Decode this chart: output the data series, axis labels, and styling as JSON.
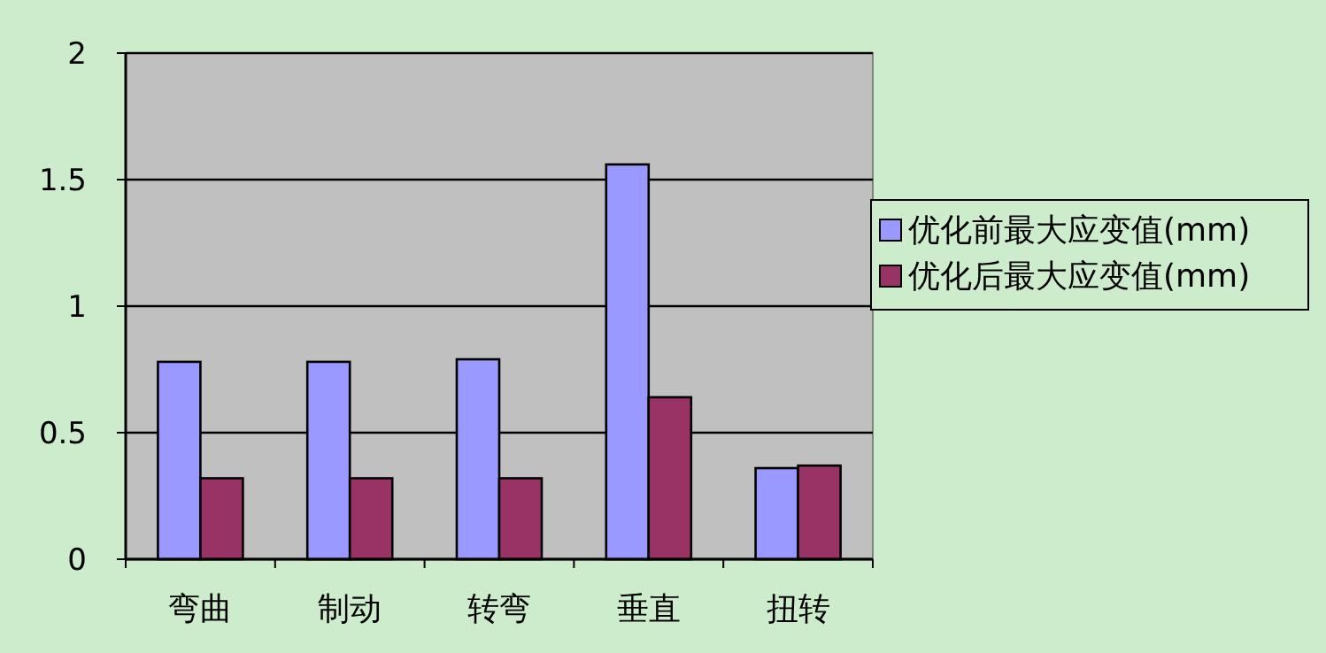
{
  "chart_data": {
    "type": "bar",
    "categories": [
      "弯曲",
      "制动",
      "转弯",
      "垂直",
      "扭转"
    ],
    "series": [
      {
        "name": "优化前最大应变值(mm)",
        "color": "#9999ff",
        "values": [
          0.78,
          0.78,
          0.79,
          1.56,
          0.36
        ]
      },
      {
        "name": "优化后最大应变值(mm)",
        "color": "#993366",
        "values": [
          0.32,
          0.32,
          0.32,
          0.64,
          0.37
        ]
      }
    ],
    "ylim": [
      0,
      2
    ],
    "yticks": [
      0,
      0.5,
      1,
      1.5,
      2
    ],
    "grid": "y",
    "legend": "right"
  }
}
